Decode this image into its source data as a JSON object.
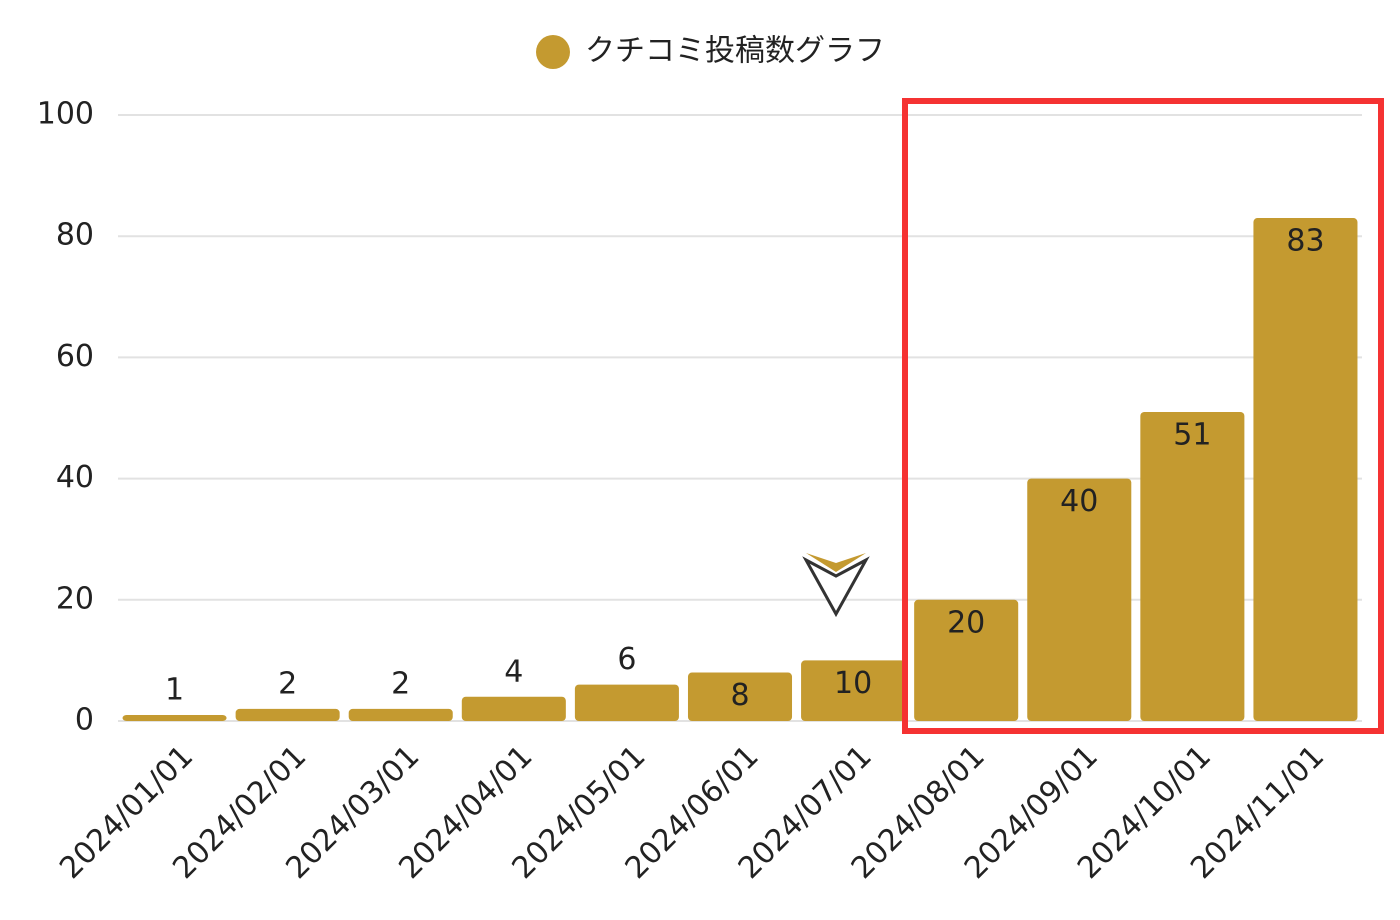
{
  "chart_data": {
    "type": "bar",
    "categories": [
      "2024/01/01",
      "2024/02/01",
      "2024/03/01",
      "2024/04/01",
      "2024/05/01",
      "2024/06/01",
      "2024/07/01",
      "2024/08/01",
      "2024/09/01",
      "2024/10/01",
      "2024/11/01"
    ],
    "series": [
      {
        "name": "クチコミ投稿数グラフ",
        "color": "#c49a30",
        "values": [
          1,
          2,
          2,
          4,
          6,
          8,
          10,
          20,
          40,
          51,
          83
        ]
      }
    ],
    "ylim": [
      0,
      100
    ],
    "yticks": [
      0,
      20,
      40,
      60,
      80,
      100
    ],
    "grid": true,
    "legend": "top"
  }
}
